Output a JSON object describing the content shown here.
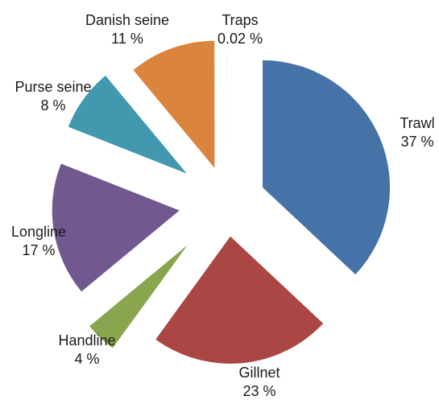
{
  "chart_data": {
    "type": "pie",
    "exploded": true,
    "slices": [
      {
        "name": "Trawl",
        "value": 37,
        "label": "Trawl",
        "pct_label": "37 %",
        "color": "#4572a7"
      },
      {
        "name": "Gillnet",
        "value": 23,
        "label": "Gillnet",
        "pct_label": "23 %",
        "color": "#aa4643"
      },
      {
        "name": "Handline",
        "value": 4,
        "label": "Handline",
        "pct_label": "4 %",
        "color": "#89a54e"
      },
      {
        "name": "Longline",
        "value": 17,
        "label": "Longline",
        "pct_label": "17 %",
        "color": "#71588f"
      },
      {
        "name": "Purse seine",
        "value": 8,
        "label": "Purse seine",
        "pct_label": "8 %",
        "color": "#4198af"
      },
      {
        "name": "Danish seine",
        "value": 11,
        "label": "Danish seine",
        "pct_label": "11 %",
        "color": "#db843d"
      },
      {
        "name": "Traps",
        "value": 0.02,
        "label": "Traps",
        "pct_label": "0.02 %",
        "color": "#c0c0c0"
      }
    ]
  }
}
